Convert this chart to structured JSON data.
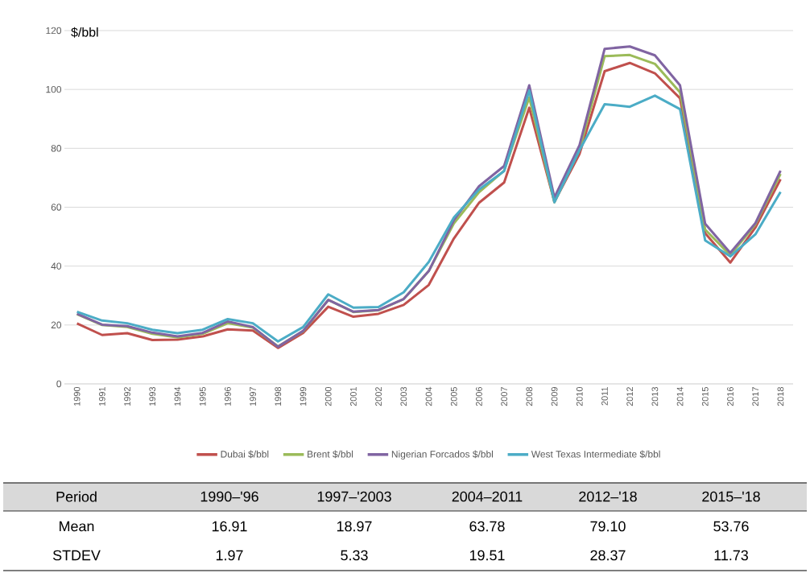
{
  "chart_data": {
    "type": "line",
    "ylabel": "$/bbl",
    "categories": [
      "1990",
      "1991",
      "1992",
      "1993",
      "1994",
      "1995",
      "1996",
      "1997",
      "1998",
      "1999",
      "2000",
      "2001",
      "2002",
      "2003",
      "2004",
      "2005",
      "2006",
      "2007",
      "2008",
      "2009",
      "2010",
      "2011",
      "2012",
      "2013",
      "2014",
      "2015",
      "2016",
      "2017",
      "2018"
    ],
    "series": [
      {
        "name": "Dubai $/bbl",
        "color": "#c0504d",
        "values": [
          20.5,
          16.6,
          17.2,
          14.9,
          15.0,
          16.1,
          18.5,
          18.1,
          12.2,
          17.3,
          26.2,
          22.8,
          23.8,
          26.8,
          33.6,
          49.4,
          61.5,
          68.4,
          93.8,
          61.8,
          78.1,
          106.2,
          109.0,
          105.5,
          97.0,
          51.2,
          41.2,
          53.1,
          69.5
        ]
      },
      {
        "name": "Brent $/bbl",
        "color": "#9bbb59",
        "values": [
          23.7,
          20.0,
          19.3,
          17.0,
          15.8,
          17.0,
          20.6,
          19.1,
          12.7,
          17.9,
          28.5,
          24.4,
          25.0,
          28.8,
          38.3,
          54.5,
          65.1,
          72.4,
          97.3,
          61.7,
          79.5,
          111.3,
          111.7,
          108.7,
          99.0,
          52.4,
          43.7,
          54.2,
          71.3
        ]
      },
      {
        "name": "Nigerian Forcados $/bbl",
        "color": "#8064a2",
        "values": [
          23.8,
          20.1,
          19.6,
          17.4,
          16.1,
          17.3,
          21.2,
          19.3,
          12.6,
          18.0,
          28.5,
          24.5,
          25.1,
          28.8,
          38.3,
          55.6,
          67.1,
          74.0,
          101.4,
          63.3,
          81.1,
          113.8,
          114.6,
          111.6,
          101.4,
          54.4,
          44.5,
          54.6,
          72.4
        ]
      },
      {
        "name": "West Texas Intermediate $/bbl",
        "color": "#4bacc6",
        "values": [
          24.5,
          21.5,
          20.6,
          18.4,
          17.2,
          18.4,
          22.0,
          20.6,
          14.4,
          19.3,
          30.4,
          25.9,
          26.1,
          31.1,
          41.4,
          56.5,
          66.0,
          72.3,
          99.6,
          61.7,
          79.4,
          95.0,
          94.1,
          97.9,
          93.3,
          48.7,
          43.3,
          50.8,
          65.2
        ]
      }
    ],
    "ylim": [
      0,
      120
    ],
    "yticks": [
      0,
      20,
      40,
      60,
      80,
      100,
      120
    ],
    "grid": "y",
    "legend": "bottom",
    "marker": "none",
    "line_style": "solid",
    "annotations": [
      "Period",
      "1990–'96",
      "1997–'2003",
      "2004–2011",
      "2012–'18",
      "2015–'18",
      "Mean",
      "16.91",
      "18.97",
      "63.78",
      "79.10",
      "53.76",
      "STDEV",
      "1.97",
      "5.33",
      "19.51",
      "28.37",
      "11.73"
    ]
  }
}
